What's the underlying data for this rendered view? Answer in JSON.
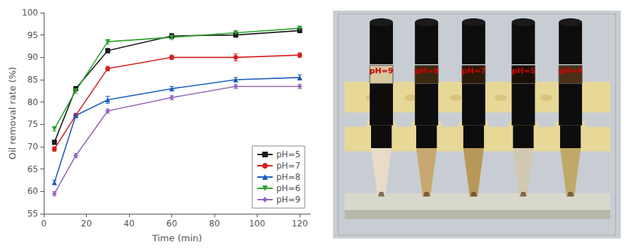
{
  "chart_data": {
    "type": "line",
    "xlabel": "Time (min)",
    "ylabel": "Oil removal rate (%)",
    "x": [
      5,
      15,
      30,
      60,
      90,
      120
    ],
    "series": [
      {
        "name": "pH=5",
        "color": "#1a1a1a",
        "marker": "square",
        "line_style": "solid",
        "values": [
          71.0,
          83.0,
          91.5,
          94.8,
          95.0,
          96.0
        ],
        "yerr": [
          0.5,
          0.5,
          0.5,
          0.5,
          0.5,
          0.5
        ]
      },
      {
        "name": "pH=7",
        "color": "#d42020",
        "marker": "circle",
        "line_style": "solid",
        "values": [
          69.5,
          77.0,
          87.5,
          90.0,
          90.0,
          90.5
        ],
        "yerr": [
          0.5,
          0.5,
          0.5,
          0.5,
          0.8,
          0.5
        ]
      },
      {
        "name": "pH=8",
        "color": "#1a5bbf",
        "marker": "triangle-up",
        "line_style": "solid",
        "values": [
          62.0,
          77.0,
          80.5,
          83.0,
          85.0,
          85.5
        ],
        "yerr": [
          0.5,
          0.5,
          0.8,
          0.5,
          0.5,
          0.6
        ]
      },
      {
        "name": "pH=6",
        "color": "#2ca02c",
        "marker": "triangle-down",
        "line_style": "solid",
        "values": [
          74.0,
          82.5,
          93.5,
          94.5,
          95.5,
          96.5
        ],
        "yerr": [
          0.5,
          0.5,
          0.5,
          0.5,
          0.5,
          0.5
        ]
      },
      {
        "name": "pH=9",
        "color": "#9467bd",
        "marker": "diamond",
        "line_style": "solid",
        "values": [
          59.5,
          68.0,
          78.0,
          81.0,
          83.5,
          83.5
        ],
        "yerr": [
          0.5,
          0.5,
          0.5,
          0.5,
          0.5,
          0.5
        ]
      }
    ],
    "xlim": [
      0,
      125
    ],
    "ylim": [
      55,
      100
    ],
    "xticks": [
      0,
      20,
      40,
      60,
      80,
      100,
      120
    ],
    "yticks": [
      55,
      60,
      65,
      70,
      75,
      80,
      85,
      90,
      95,
      100
    ],
    "grid": false,
    "legend": "lower right",
    "annotations": [
      "pH=9",
      "pH=8",
      "pH=7",
      "pH=5",
      "pH=6"
    ]
  }
}
